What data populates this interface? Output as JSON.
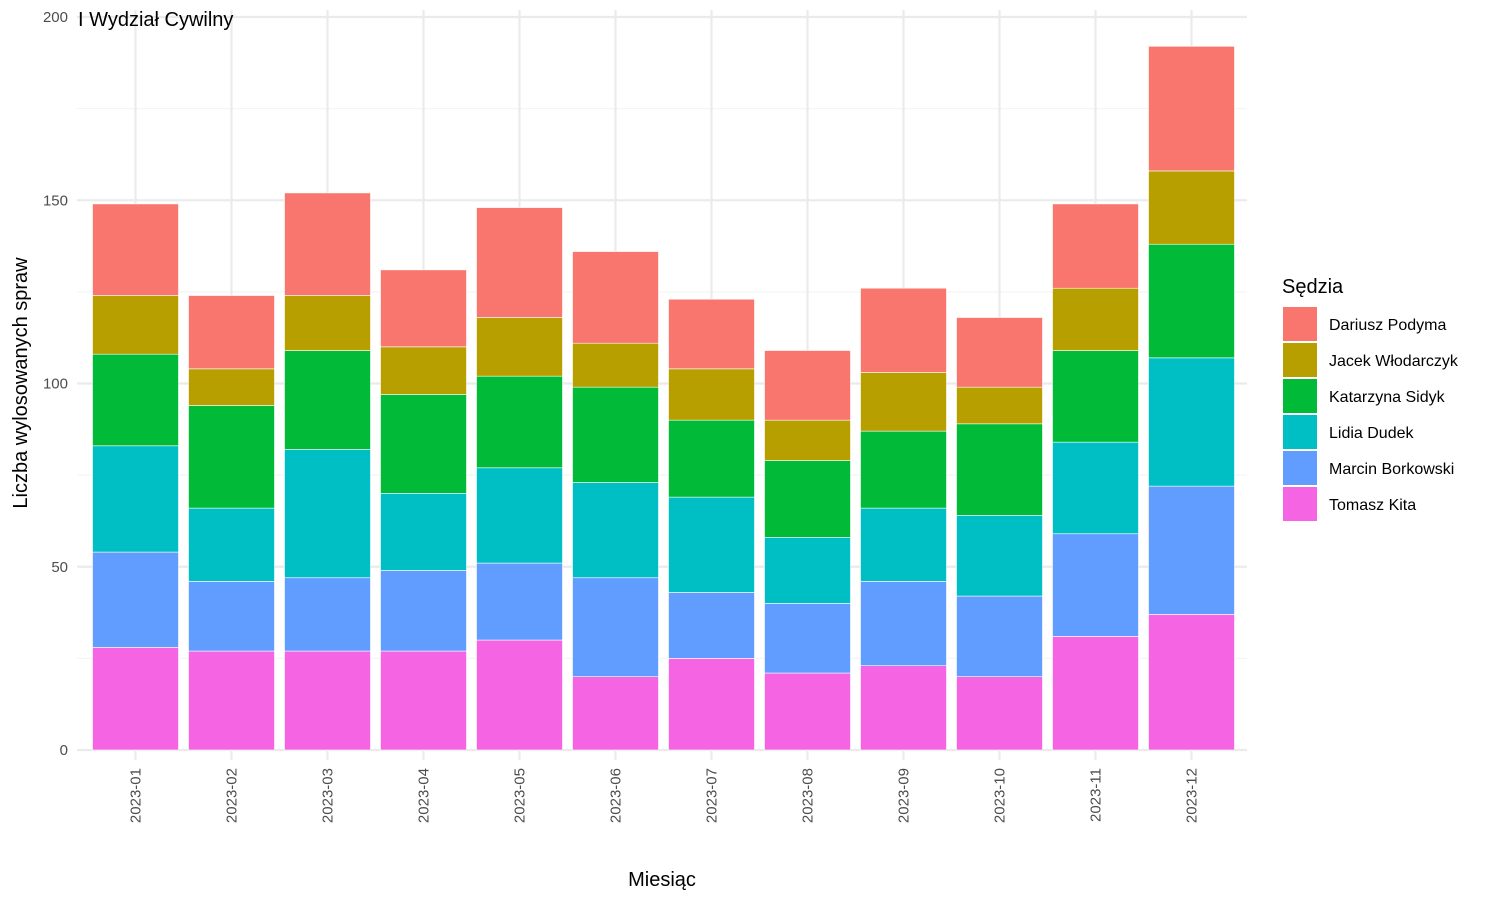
{
  "chart_data": {
    "type": "bar",
    "stacked": true,
    "title": "I Wydział Cywilny",
    "xlabel": "Miesiąc",
    "ylabel": "Liczba wylosowanych spraw",
    "ylim": [
      0,
      200
    ],
    "yticks": [
      0,
      50,
      100,
      150,
      200
    ],
    "grid": true,
    "legend_title": "Sędzia",
    "legend_position": "right",
    "categories": [
      "2023-01",
      "2023-02",
      "2023-03",
      "2023-04",
      "2023-05",
      "2023-06",
      "2023-07",
      "2023-08",
      "2023-09",
      "2023-10",
      "2023-11",
      "2023-12"
    ],
    "series": [
      {
        "name": "Dariusz Podyma",
        "color": "#F8766D",
        "values": [
          25,
          20,
          28,
          21,
          30,
          25,
          19,
          19,
          23,
          19,
          23,
          34
        ]
      },
      {
        "name": "Jacek Włodarczyk",
        "color": "#B79F00",
        "values": [
          16,
          10,
          15,
          13,
          16,
          12,
          14,
          11,
          16,
          10,
          17,
          20
        ]
      },
      {
        "name": "Katarzyna Sidyk",
        "color": "#00BA38",
        "values": [
          25,
          28,
          27,
          27,
          25,
          26,
          21,
          21,
          21,
          25,
          25,
          31
        ]
      },
      {
        "name": "Lidia Dudek",
        "color": "#00BFC4",
        "values": [
          29,
          20,
          35,
          21,
          26,
          26,
          26,
          18,
          20,
          22,
          25,
          35
        ]
      },
      {
        "name": "Marcin Borkowski",
        "color": "#619CFF",
        "values": [
          26,
          19,
          20,
          22,
          21,
          27,
          18,
          19,
          23,
          22,
          28,
          35
        ]
      },
      {
        "name": "Tomasz Kita",
        "color": "#F564E3",
        "values": [
          28,
          27,
          27,
          27,
          30,
          20,
          25,
          21,
          23,
          20,
          31,
          37
        ]
      }
    ]
  }
}
